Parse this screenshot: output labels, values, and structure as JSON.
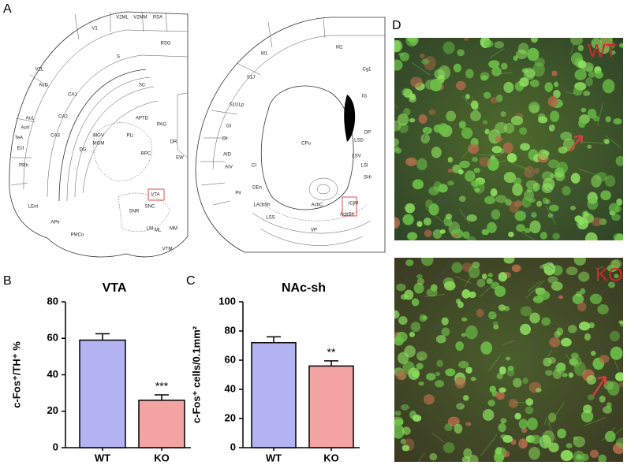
{
  "panels": {
    "a": "A",
    "b": "B",
    "c": "C",
    "d": "D"
  },
  "atlas": {
    "left_labels": [
      "V1",
      "V2ML",
      "V2MM",
      "RSA",
      "RSG",
      "V2L",
      "AuD",
      "Au1",
      "AuV",
      "TeA",
      "Ect",
      "PRh",
      "LEnt",
      "APir",
      "PMCo",
      "CA1",
      "CA2",
      "CA3",
      "DG",
      "S",
      "SC",
      "APTD",
      "PAG",
      "MGV",
      "MGM",
      "PLi",
      "RPC",
      "VTA",
      "SNC",
      "SNR",
      "ML",
      "MM",
      "VTM",
      "LM",
      "DR",
      "EW"
    ],
    "right_labels": [
      "M1",
      "M2",
      "Cg1",
      "S1J",
      "S1ULp",
      "GI",
      "DI",
      "AID",
      "AIV",
      "Pir",
      "CI",
      "DEn",
      "CPu",
      "AcbC",
      "AcbSh",
      "LAcbSh",
      "LSS",
      "VP",
      "LSI",
      "LSD",
      "LSV",
      "ICjM",
      "IG",
      "DP",
      "SHi"
    ]
  },
  "micrographs": {
    "top": "WT",
    "bottom": "KO"
  },
  "chart_data": [
    {
      "type": "bar",
      "title": "VTA",
      "y_label": "c-Fos⁺/TH⁺ %",
      "categories": [
        "WT",
        "KO"
      ],
      "values": [
        59,
        26
      ],
      "errors": [
        3.5,
        3
      ],
      "colors": [
        "#b3b3f2",
        "#f4a3a3"
      ],
      "annotation": "***",
      "ylim": [
        0,
        80
      ],
      "yticks": [
        0,
        20,
        40,
        60,
        80
      ]
    },
    {
      "type": "bar",
      "title": "NAc-sh",
      "y_label": "c-Fos⁺ cells/0.1mm²",
      "categories": [
        "WT",
        "KO"
      ],
      "values": [
        72,
        56
      ],
      "errors": [
        4,
        3.5
      ],
      "colors": [
        "#b3b3f2",
        "#f4a3a3"
      ],
      "annotation": "**",
      "ylim": [
        0,
        100
      ],
      "yticks": [
        0,
        20,
        40,
        60,
        80,
        100
      ]
    }
  ]
}
